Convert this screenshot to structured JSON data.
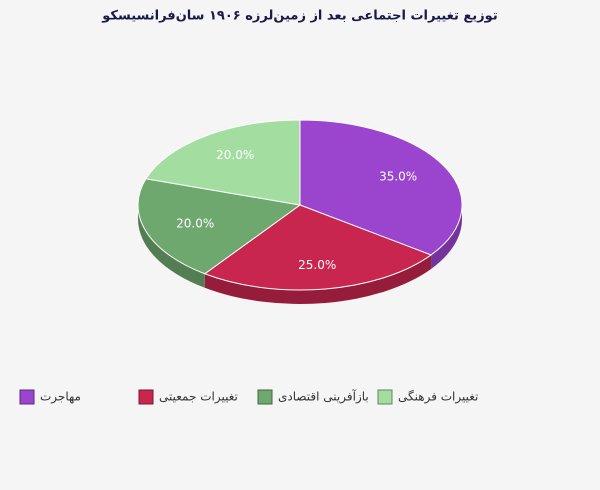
{
  "chart_data": {
    "type": "pie3d",
    "title": "توزیع تغییرات اجتماعی بعد از زمین‌لرزه ۱۹۰۶ سان‌فرانسیسکو",
    "categories": [
      "مهاجرت",
      "تغییرات جمعیتی",
      "بازآفرینی اقتصادی",
      "تغییرات فرهنگی"
    ],
    "values": [
      35,
      25,
      20,
      20
    ],
    "value_labels": [
      "35.0%",
      "25.0%",
      "20.0%",
      "20.0%"
    ],
    "colors": [
      "#9b45cf",
      "#c8254f",
      "#6fa86f",
      "#a3dea0"
    ]
  }
}
